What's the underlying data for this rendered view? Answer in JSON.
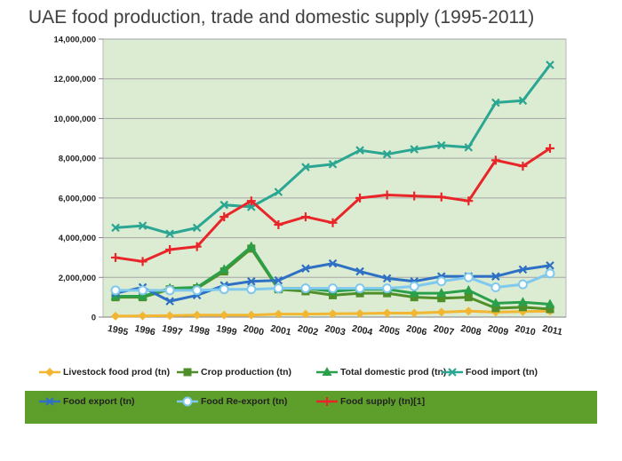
{
  "chart_data": {
    "type": "line",
    "title": "UAE food production, trade and domestic supply (1995-2011)",
    "categories": [
      "1995",
      "1996",
      "1997",
      "1998",
      "1999",
      "2000",
      "2001",
      "2002",
      "2003",
      "2004",
      "2005",
      "2006",
      "2007",
      "2008",
      "2009",
      "2010",
      "2011"
    ],
    "ylim": [
      0,
      14000000
    ],
    "yticks": [
      "0",
      "2,000,000",
      "4,000,000",
      "6,000,000",
      "8,000,000",
      "10,000,000",
      "12,000,000",
      "14,000,000"
    ],
    "ytick_values": [
      0,
      2000000,
      4000000,
      6000000,
      8000000,
      10000000,
      12000000,
      14000000
    ],
    "grid": true,
    "plot_background": "#dcecd2",
    "series": [
      {
        "name": "Livestock food prod (tn)",
        "color": "#f2b632",
        "marker": "diamond",
        "values": [
          50000,
          60000,
          70000,
          100000,
          100000,
          100000,
          150000,
          150000,
          170000,
          180000,
          200000,
          200000,
          250000,
          300000,
          250000,
          280000,
          300000
        ]
      },
      {
        "name": "Crop production (tn)",
        "color": "#4f8f2a",
        "marker": "square",
        "values": [
          1000000,
          1000000,
          1400000,
          1450000,
          2300000,
          3450000,
          1400000,
          1300000,
          1100000,
          1200000,
          1200000,
          1000000,
          950000,
          1000000,
          450000,
          500000,
          400000
        ]
      },
      {
        "name": "Total domestic prod (tn)",
        "color": "#2aa04a",
        "marker": "triangle",
        "values": [
          1050000,
          1050000,
          1450000,
          1500000,
          2400000,
          3550000,
          1450000,
          1450000,
          1300000,
          1400000,
          1400000,
          1200000,
          1200000,
          1350000,
          700000,
          750000,
          650000
        ]
      },
      {
        "name": "Food import (tn)",
        "color": "#2aa692",
        "marker": "x",
        "values": [
          4500000,
          4600000,
          4200000,
          4500000,
          5650000,
          5550000,
          6300000,
          7550000,
          7700000,
          8400000,
          8200000,
          8450000,
          8650000,
          8550000,
          10800000,
          10900000,
          12700000
        ]
      },
      {
        "name": "Food export (tn)",
        "color": "#2e70c4",
        "marker": "x",
        "values": [
          1200000,
          1500000,
          800000,
          1100000,
          1600000,
          1800000,
          1850000,
          2450000,
          2700000,
          2300000,
          1950000,
          1800000,
          2050000,
          2050000,
          2050000,
          2400000,
          2600000
        ]
      },
      {
        "name": "Food Re-export (tn)",
        "color": "#7fc8ee",
        "marker": "circle",
        "values": [
          1350000,
          1350000,
          1350000,
          1350000,
          1400000,
          1400000,
          1450000,
          1450000,
          1450000,
          1450000,
          1450000,
          1550000,
          1800000,
          2000000,
          1500000,
          1650000,
          2200000
        ]
      },
      {
        "name": "Food supply (tn)[1]",
        "color": "#e8262a",
        "marker": "plus",
        "values": [
          3000000,
          2800000,
          3400000,
          3550000,
          5050000,
          5850000,
          4650000,
          5050000,
          4750000,
          6000000,
          6150000,
          6100000,
          6050000,
          5850000,
          7900000,
          7600000,
          8500000
        ]
      }
    ]
  }
}
